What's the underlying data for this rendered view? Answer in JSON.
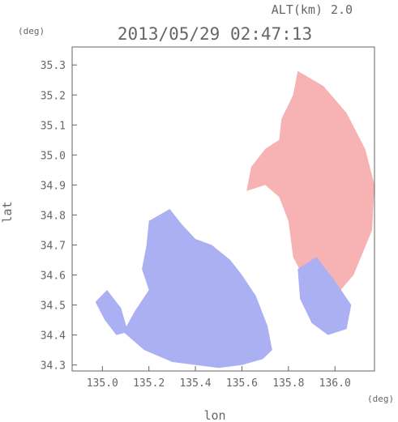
{
  "chart_data": {
    "type": "heatmap",
    "title": "2013/05/29 02:47:13",
    "altitude_label": "ALT(km)",
    "altitude_value": "2.0",
    "xlabel": "lon",
    "ylabel": "lat",
    "x_unit": "(deg)",
    "y_unit": "(deg)",
    "xlim": [
      134.87,
      136.17
    ],
    "ylim": [
      34.28,
      35.36
    ],
    "x_ticks": [
      135.0,
      135.2,
      135.4,
      135.6,
      135.8,
      136.0
    ],
    "x_tick_labels": [
      "135.0",
      "135.2",
      "135.4",
      "135.6",
      "135.8",
      "136.0"
    ],
    "y_ticks": [
      34.3,
      34.4,
      34.5,
      34.6,
      34.7,
      34.8,
      34.9,
      35.0,
      35.1,
      35.2,
      35.3
    ],
    "y_tick_labels": [
      "34.3",
      "34.4",
      "34.5",
      "34.6",
      "34.7",
      "34.8",
      "34.9",
      "35.0",
      "35.1",
      "35.2",
      "35.3"
    ],
    "grid": false,
    "colors": {
      "approaching": "#aab0f2",
      "receding": "#f7b3b3",
      "frame": "#666666"
    },
    "regions": [
      {
        "name": "receding-north",
        "tone": "receding",
        "outline": [
          [
            135.84,
            35.28
          ],
          [
            135.95,
            35.23
          ],
          [
            136.05,
            35.14
          ],
          [
            136.13,
            35.02
          ],
          [
            136.17,
            34.9
          ],
          [
            136.16,
            34.75
          ],
          [
            136.08,
            34.6
          ],
          [
            135.97,
            34.5
          ],
          [
            135.88,
            34.57
          ],
          [
            135.82,
            34.66
          ],
          [
            135.8,
            34.78
          ],
          [
            135.76,
            34.86
          ],
          [
            135.7,
            34.9
          ],
          [
            135.66,
            34.89
          ],
          [
            135.62,
            34.88
          ],
          [
            135.64,
            34.96
          ],
          [
            135.7,
            35.02
          ],
          [
            135.76,
            35.05
          ],
          [
            135.77,
            35.12
          ],
          [
            135.82,
            35.2
          ]
        ]
      },
      {
        "name": "approaching-southwest",
        "tone": "approaching",
        "outline": [
          [
            135.2,
            34.78
          ],
          [
            135.29,
            34.82
          ],
          [
            135.34,
            34.77
          ],
          [
            135.4,
            34.72
          ],
          [
            135.47,
            34.7
          ],
          [
            135.55,
            34.65
          ],
          [
            135.6,
            34.6
          ],
          [
            135.66,
            34.53
          ],
          [
            135.71,
            34.43
          ],
          [
            135.73,
            34.35
          ],
          [
            135.69,
            34.32
          ],
          [
            135.6,
            34.3
          ],
          [
            135.5,
            34.29
          ],
          [
            135.4,
            34.3
          ],
          [
            135.3,
            34.31
          ],
          [
            135.18,
            34.35
          ],
          [
            135.09,
            34.41
          ],
          [
            135.14,
            34.48
          ],
          [
            135.2,
            34.55
          ],
          [
            135.17,
            34.62
          ],
          [
            135.19,
            34.7
          ]
        ]
      },
      {
        "name": "approaching-west-strip",
        "tone": "approaching",
        "outline": [
          [
            134.97,
            34.51
          ],
          [
            135.02,
            34.55
          ],
          [
            135.08,
            34.49
          ],
          [
            135.11,
            34.41
          ],
          [
            135.06,
            34.4
          ],
          [
            135.01,
            34.45
          ]
        ]
      },
      {
        "name": "approaching-east",
        "tone": "approaching",
        "outline": [
          [
            135.84,
            34.62
          ],
          [
            135.92,
            34.66
          ],
          [
            136.0,
            34.58
          ],
          [
            136.07,
            34.5
          ],
          [
            136.05,
            34.42
          ],
          [
            135.97,
            34.4
          ],
          [
            135.9,
            34.44
          ],
          [
            135.85,
            34.52
          ]
        ]
      }
    ]
  }
}
